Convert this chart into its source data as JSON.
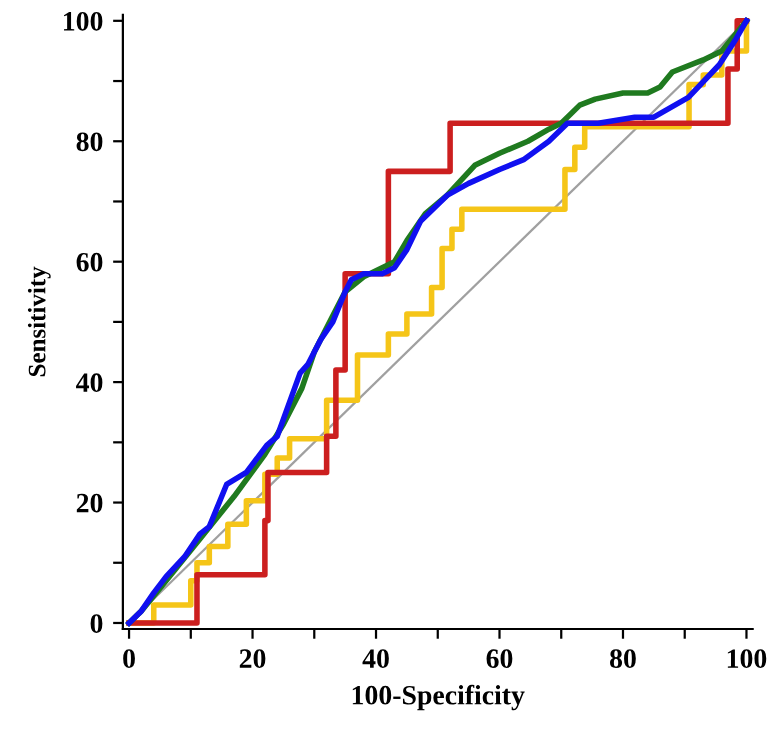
{
  "chart_data": {
    "type": "line",
    "xlabel": "100-Specificity",
    "ylabel": "Sensitivity",
    "xlim": [
      -1,
      101
    ],
    "ylim": [
      -1,
      101
    ],
    "xticks": [
      0,
      {
        "value": 10,
        "label": null
      },
      20,
      {
        "value": 30,
        "label": null
      },
      40,
      {
        "value": 50,
        "label": null
      },
      60,
      {
        "value": 70,
        "label": null
      },
      80,
      {
        "value": 90,
        "label": null
      },
      100
    ],
    "yticks": [
      0,
      {
        "value": 10,
        "label": null
      },
      20,
      {
        "value": 30,
        "label": null
      },
      40,
      {
        "value": 50,
        "label": null
      },
      60,
      {
        "value": 70,
        "label": null
      },
      80,
      {
        "value": 90,
        "label": null
      },
      100
    ],
    "grid": false,
    "legend": false,
    "marker": "none",
    "line_style": "solid",
    "series": [
      {
        "color": "#a0a0a0",
        "x": [
          0,
          100
        ],
        "values": [
          0,
          100
        ]
      },
      {
        "type": "step",
        "color": "#f5c518",
        "x": [
          0,
          4,
          10,
          11,
          13,
          16,
          19,
          22,
          24,
          26,
          32,
          37,
          42,
          45,
          49,
          50.7,
          52.3,
          53.9,
          70.6,
          72.2,
          73.8,
          90.7,
          93,
          96,
          100
        ],
        "values": [
          0,
          3,
          7,
          10,
          12.7,
          16.4,
          20.3,
          24.7,
          27.4,
          30.6,
          37,
          44.5,
          48,
          51.3,
          55.7,
          62.2,
          65.4,
          68.7,
          75.3,
          79,
          82.4,
          89.4,
          91,
          95,
          100
        ]
      },
      {
        "type": "step",
        "color": "#cc1f1f",
        "x": [
          0,
          11,
          22,
          22.5,
          32,
          33.5,
          35,
          42,
          52,
          97,
          98.5,
          100
        ],
        "values": [
          0,
          8,
          17,
          25,
          31,
          42,
          58,
          75,
          83,
          92,
          100,
          100
        ]
      },
      {
        "color": "#1f7a1f",
        "x": [
          0,
          2,
          6,
          11.5,
          17,
          22,
          25,
          28,
          30,
          33,
          35,
          38,
          41,
          43,
          45,
          48,
          51.5,
          56,
          60,
          64.6,
          68,
          70,
          73,
          75.5,
          80,
          84,
          86,
          88,
          93,
          96,
          100
        ],
        "values": [
          0,
          2,
          7,
          14,
          21,
          28,
          33,
          39,
          45,
          51,
          55,
          57.5,
          59,
          60,
          63.5,
          68,
          71,
          76,
          78,
          80,
          82,
          83,
          86,
          87,
          88,
          88,
          89,
          91.5,
          93.5,
          95,
          100
        ]
      },
      {
        "color": "#1010f0",
        "x": [
          0,
          2,
          4,
          6,
          9,
          11.5,
          13,
          15.8,
          19,
          22.3,
          24,
          27.7,
          29,
          31,
          33,
          35,
          36,
          38,
          41,
          43,
          45,
          47.2,
          51.5,
          55,
          60,
          64,
          68,
          71,
          76,
          81.9,
          85,
          90.6,
          95.6,
          98.3,
          100
        ],
        "values": [
          0,
          2,
          5,
          7.7,
          11,
          14.8,
          16,
          23,
          25,
          29.5,
          31,
          41.5,
          43,
          47,
          50,
          55,
          57,
          58,
          58,
          59,
          62,
          66.7,
          71,
          73,
          75.3,
          77,
          80,
          83,
          83,
          84,
          84,
          87.3,
          92.7,
          97,
          100
        ]
      }
    ]
  }
}
